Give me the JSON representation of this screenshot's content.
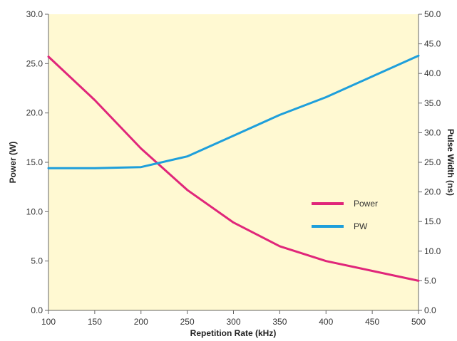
{
  "chart_data": {
    "type": "line",
    "title": "",
    "xlabel": "Repetition Rate (kHz)",
    "ylabel": "Power (W)",
    "y2label": "Pulse Width (ns)",
    "xlim": [
      100,
      500
    ],
    "ylim": [
      0,
      30
    ],
    "y2lim": [
      0,
      50
    ],
    "x_ticks": [
      "100",
      "150",
      "200",
      "250",
      "300",
      "350",
      "400",
      "450",
      "500"
    ],
    "y_ticks": [
      "0.0",
      "5.0",
      "10.0",
      "15.0",
      "20.0",
      "25.0",
      "30.0"
    ],
    "y2_ticks": [
      "0.0",
      "5.0",
      "10.0",
      "15.0",
      "20.0",
      "25.0",
      "30.0",
      "35.0",
      "40.0",
      "45.0",
      "50.0"
    ],
    "grid": false,
    "legend_position": "right",
    "series": [
      {
        "name": "Power",
        "axis": "left",
        "color": "#e0267a",
        "x": [
          100,
          150,
          200,
          250,
          300,
          350,
          400,
          450,
          500
        ],
        "y": [
          25.7,
          21.3,
          16.4,
          12.2,
          8.9,
          6.5,
          5.0,
          4.0,
          3.0
        ]
      },
      {
        "name": "PW",
        "axis": "right",
        "color": "#1e9fdb",
        "x": [
          100,
          150,
          200,
          250,
          300,
          350,
          400,
          450,
          500
        ],
        "y": [
          24.0,
          24.0,
          24.2,
          26.0,
          29.5,
          33.0,
          36.0,
          39.5,
          43.0
        ]
      }
    ]
  },
  "colors": {
    "plot_background": "#fff9d2",
    "axis": "#666666"
  }
}
